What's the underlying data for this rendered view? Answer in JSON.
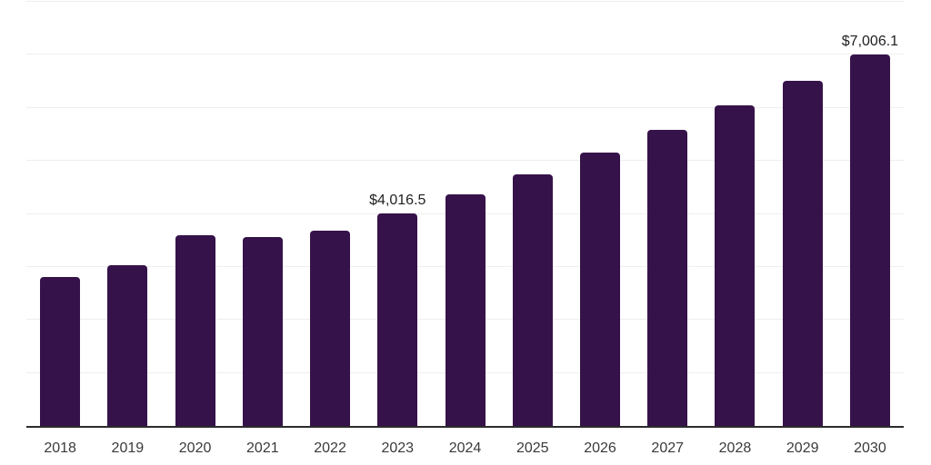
{
  "chart_data": {
    "type": "bar",
    "title": "",
    "xlabel": "",
    "ylabel": "",
    "categories": [
      "2018",
      "2019",
      "2020",
      "2021",
      "2022",
      "2023",
      "2024",
      "2025",
      "2026",
      "2027",
      "2028",
      "2029",
      "2030"
    ],
    "values": [
      2810,
      3030,
      3605,
      3555,
      3690,
      4016.5,
      4365,
      4745,
      5150,
      5585,
      6050,
      6510,
      7006.1
    ],
    "data_labels": [
      {
        "category": "2023",
        "text": "$4,016.5"
      },
      {
        "category": "2030",
        "text": "$7,006.1"
      }
    ],
    "ylim": [
      0,
      8000
    ],
    "gridline_interval": 1000,
    "grid": "horizontal",
    "legend_position": "none",
    "y_axis_tick_labels_visible": false,
    "colors": {
      "bar": "#36124a",
      "gridline": "#eeeeee",
      "axis_line": "#2b2b2b",
      "x_tick_label": "#3a3a3a",
      "data_label": "#1f1f1f",
      "background": "#ffffff"
    }
  }
}
